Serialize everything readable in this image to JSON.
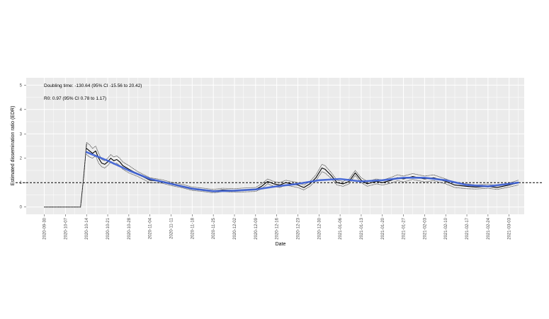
{
  "chart_data": {
    "type": "line",
    "title": "",
    "xlabel": "Date",
    "ylabel": "Estimated dissemination ratio (EDR)",
    "annotations": [
      "Doubling time: -130.64 (95% CI -15.56 to 20.42)",
      "R0: 0.97 (95% CI 0.78 to 1.17)"
    ],
    "x_range": [
      "2020-09-24",
      "2021-03-08"
    ],
    "ylim": [
      -0.3,
      5.3
    ],
    "y_ticks": [
      0,
      1,
      2,
      3,
      4,
      5
    ],
    "x_ticks": [
      "2020-09-30",
      "2020-10-07",
      "2020-10-14",
      "2020-10-21",
      "2020-10-28",
      "2020-11-04",
      "2020-11-11",
      "2020-11-18",
      "2020-11-25",
      "2020-12-02",
      "2020-12-09",
      "2020-12-16",
      "2020-12-23",
      "2020-12-30",
      "2021-01-06",
      "2021-01-13",
      "2021-01-20",
      "2021-01-27",
      "2021-02-03",
      "2021-02-10",
      "2021-02-17",
      "2021-02-24",
      "2021-03-03"
    ],
    "reference_line": 1,
    "grid": true,
    "background": "#ebebeb",
    "colors": {
      "edr": "#000000",
      "ci": "#555555",
      "trend": "#3b5fd6",
      "reference": "#000000",
      "grid": "#ffffff"
    },
    "series": [
      {
        "style": "black-solid",
        "x": [
          "2020-10-14",
          "2020-10-15",
          "2020-10-16",
          "2020-10-17",
          "2020-10-18",
          "2020-10-19",
          "2020-10-20",
          "2020-10-21",
          "2020-10-22",
          "2020-10-23",
          "2020-10-24",
          "2020-10-25",
          "2020-10-26",
          "2020-10-28",
          "2020-10-31",
          "2020-11-04",
          "2020-11-08",
          "2020-11-11",
          "2020-11-15",
          "2020-11-18",
          "2020-11-22",
          "2020-11-25",
          "2020-11-28",
          "2020-12-02",
          "2020-12-05",
          "2020-12-09",
          "2020-12-11",
          "2020-12-13",
          "2020-12-15",
          "2020-12-17",
          "2020-12-19",
          "2020-12-21",
          "2020-12-23",
          "2020-12-25",
          "2020-12-27",
          "2020-12-29",
          "2020-12-31",
          "2021-01-01",
          "2021-01-03",
          "2021-01-05",
          "2021-01-07",
          "2021-01-09",
          "2021-01-11",
          "2021-01-13",
          "2021-01-15",
          "2021-01-18",
          "2021-01-20",
          "2021-01-23",
          "2021-01-25",
          "2021-01-27",
          "2021-01-30",
          "2021-02-03",
          "2021-02-06",
          "2021-02-10",
          "2021-02-13",
          "2021-02-17",
          "2021-02-20",
          "2021-02-24",
          "2021-02-27",
          "2021-03-03",
          "2021-03-06"
        ],
        "y": [
          2.4,
          2.3,
          2.2,
          2.3,
          2.0,
          1.8,
          1.75,
          1.85,
          2.0,
          1.9,
          1.95,
          1.85,
          1.7,
          1.55,
          1.35,
          1.1,
          1.05,
          0.95,
          0.85,
          0.75,
          0.7,
          0.65,
          0.7,
          0.68,
          0.7,
          0.72,
          0.85,
          1.05,
          0.95,
          0.9,
          1.0,
          0.95,
          0.9,
          0.8,
          0.95,
          1.2,
          1.6,
          1.55,
          1.3,
          1.0,
          0.95,
          1.05,
          1.4,
          1.1,
          0.95,
          1.05,
          1.0,
          1.1,
          1.2,
          1.15,
          1.25,
          1.15,
          1.2,
          1.05,
          0.9,
          0.85,
          0.82,
          0.85,
          0.8,
          0.9,
          1.0
        ]
      },
      {
        "style": "dotted-upper-ci",
        "x": [
          "2020-10-14",
          "2020-10-15",
          "2020-10-16",
          "2020-10-17",
          "2020-10-18",
          "2020-10-19",
          "2020-10-20",
          "2020-10-21",
          "2020-10-22",
          "2020-10-23",
          "2020-10-24",
          "2020-10-25",
          "2020-10-26",
          "2020-10-28",
          "2020-10-31",
          "2020-11-04",
          "2020-11-08",
          "2020-11-11",
          "2020-11-15",
          "2020-11-18",
          "2020-11-22",
          "2020-11-25",
          "2020-11-28",
          "2020-12-02",
          "2020-12-05",
          "2020-12-09",
          "2020-12-11",
          "2020-12-13",
          "2020-12-15",
          "2020-12-17",
          "2020-12-19",
          "2020-12-21",
          "2020-12-23",
          "2020-12-25",
          "2020-12-27",
          "2020-12-29",
          "2020-12-31",
          "2021-01-01",
          "2021-01-03",
          "2021-01-05",
          "2021-01-07",
          "2021-01-09",
          "2021-01-11",
          "2021-01-13",
          "2021-01-15",
          "2021-01-18",
          "2021-01-20",
          "2021-01-23",
          "2021-01-25",
          "2021-01-27",
          "2021-01-30",
          "2021-02-03",
          "2021-02-06",
          "2021-02-10",
          "2021-02-13",
          "2021-02-17",
          "2021-02-20",
          "2021-02-24",
          "2021-02-27",
          "2021-03-03",
          "2021-03-06"
        ],
        "y": [
          2.65,
          2.55,
          2.4,
          2.5,
          2.2,
          1.95,
          1.9,
          2.0,
          2.15,
          2.05,
          2.1,
          2.0,
          1.85,
          1.7,
          1.45,
          1.2,
          1.12,
          1.02,
          0.92,
          0.82,
          0.77,
          0.72,
          0.77,
          0.75,
          0.78,
          0.8,
          0.95,
          1.15,
          1.05,
          1.0,
          1.1,
          1.05,
          1.0,
          0.9,
          1.05,
          1.32,
          1.75,
          1.7,
          1.42,
          1.1,
          1.05,
          1.15,
          1.5,
          1.2,
          1.05,
          1.15,
          1.1,
          1.22,
          1.32,
          1.27,
          1.37,
          1.27,
          1.32,
          1.15,
          1.0,
          0.95,
          0.9,
          0.93,
          0.88,
          0.98,
          1.1
        ]
      },
      {
        "style": "dotted-lower-ci",
        "x": [
          "2020-10-14",
          "2020-10-15",
          "2020-10-16",
          "2020-10-17",
          "2020-10-18",
          "2020-10-19",
          "2020-10-20",
          "2020-10-21",
          "2020-10-22",
          "2020-10-23",
          "2020-10-24",
          "2020-10-25",
          "2020-10-26",
          "2020-10-28",
          "2020-10-31",
          "2020-11-04",
          "2020-11-08",
          "2020-11-11",
          "2020-11-15",
          "2020-11-18",
          "2020-11-22",
          "2020-11-25",
          "2020-11-28",
          "2020-12-02",
          "2020-12-05",
          "2020-12-09",
          "2020-12-11",
          "2020-12-13",
          "2020-12-15",
          "2020-12-17",
          "2020-12-19",
          "2020-12-21",
          "2020-12-23",
          "2020-12-25",
          "2020-12-27",
          "2020-12-29",
          "2020-12-31",
          "2021-01-01",
          "2021-01-03",
          "2021-01-05",
          "2021-01-07",
          "2021-01-09",
          "2021-01-11",
          "2021-01-13",
          "2021-01-15",
          "2021-01-18",
          "2021-01-20",
          "2021-01-23",
          "2021-01-25",
          "2021-01-27",
          "2021-01-30",
          "2021-02-03",
          "2021-02-06",
          "2021-02-10",
          "2021-02-13",
          "2021-02-17",
          "2021-02-20",
          "2021-02-24",
          "2021-02-27",
          "2021-03-03",
          "2021-03-06"
        ],
        "y": [
          2.15,
          2.05,
          2.0,
          2.1,
          1.8,
          1.65,
          1.6,
          1.7,
          1.85,
          1.75,
          1.8,
          1.7,
          1.55,
          1.4,
          1.25,
          1.0,
          0.98,
          0.88,
          0.78,
          0.68,
          0.63,
          0.58,
          0.63,
          0.61,
          0.62,
          0.64,
          0.75,
          0.95,
          0.85,
          0.8,
          0.9,
          0.85,
          0.8,
          0.7,
          0.85,
          1.08,
          1.45,
          1.4,
          1.18,
          0.9,
          0.85,
          0.95,
          1.3,
          1.0,
          0.85,
          0.95,
          0.9,
          0.98,
          1.08,
          1.03,
          1.13,
          1.03,
          1.08,
          0.95,
          0.8,
          0.75,
          0.74,
          0.77,
          0.72,
          0.82,
          0.9
        ]
      },
      {
        "style": "dotted-early",
        "x": [
          "2020-09-30",
          "2020-10-12",
          "2020-10-13",
          "2020-10-14"
        ],
        "y": [
          0,
          0,
          1.2,
          2.6
        ]
      },
      {
        "style": "blue-trend",
        "x": [
          "2020-10-14",
          "2020-10-21",
          "2020-10-28",
          "2020-11-04",
          "2020-11-11",
          "2020-11-18",
          "2020-11-25",
          "2020-12-02",
          "2020-12-09",
          "2020-12-16",
          "2020-12-23",
          "2020-12-30",
          "2021-01-06",
          "2021-01-13",
          "2021-01-20",
          "2021-01-27",
          "2021-02-03",
          "2021-02-10",
          "2021-02-17",
          "2021-02-24",
          "2021-03-03",
          "2021-03-06"
        ],
        "y": [
          2.25,
          1.9,
          1.5,
          1.15,
          0.95,
          0.75,
          0.65,
          0.67,
          0.72,
          0.85,
          0.95,
          1.1,
          1.15,
          1.05,
          1.1,
          1.2,
          1.2,
          1.1,
          0.9,
          0.85,
          0.95,
          1.0
        ]
      }
    ]
  }
}
